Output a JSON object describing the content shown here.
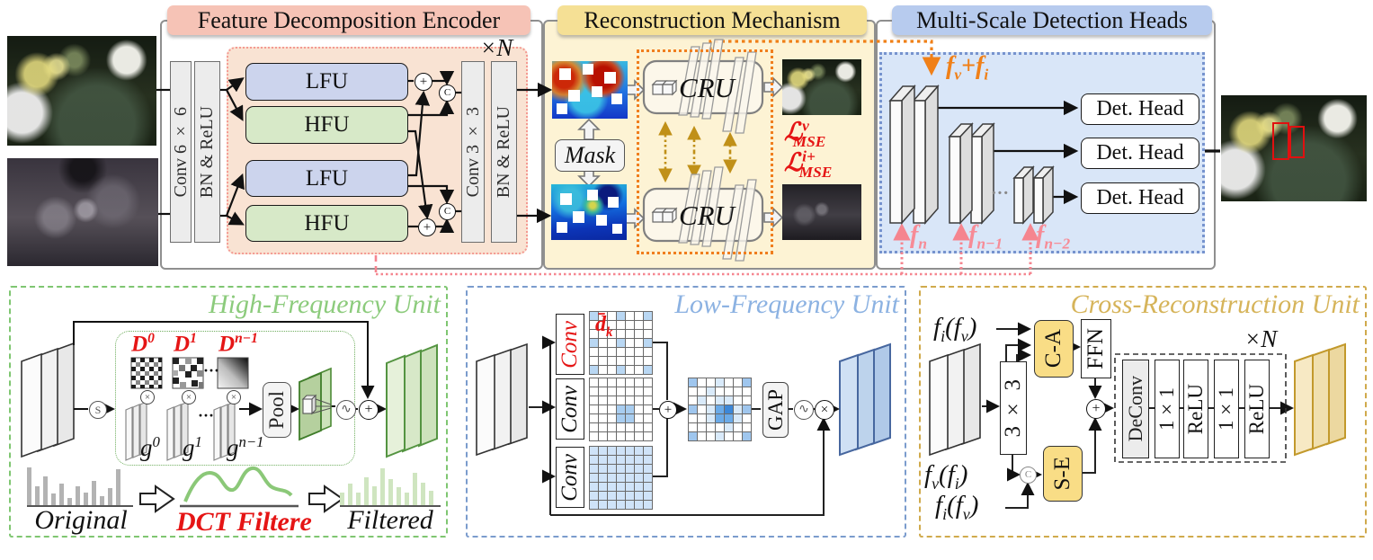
{
  "sections": {
    "encoder": {
      "title": "Feature Decomposition Encoder",
      "conv6": "Conv 6 × 6",
      "bn_relu": "BN & ReLU",
      "conv3": "Conv 3 × 3",
      "lfu": "LFU",
      "hfu": "HFU",
      "repeat": "×N",
      "icons": {
        "add": "+",
        "concat": "C"
      }
    },
    "reconstruction": {
      "title": "Reconstruction Mechanism",
      "mask": "Mask",
      "cru": "CRU",
      "loss_v": "ℒ<sup>v</sup><sub>MSE</sub>",
      "loss_i": "ℒ<sup>i+</sup><sub>MSE</sub>"
    },
    "detection": {
      "title": "Multi-Scale Detection Heads",
      "fused": "f<sub>v</sub>+f<sub>i</sub>",
      "det_head": "Det. Head",
      "dots": "···",
      "f_n": "f<sub>n</sub>",
      "f_n1": "f<sub>n−1</sub>",
      "f_n2": "f<sub>n−2</sub>"
    }
  },
  "units": {
    "hfu": {
      "title": "High-Frequency Unit",
      "d0": "D<sup>0</sup>",
      "d1": "D<sup>1</sup>",
      "dn": "D<sup>n−1</sup>",
      "g0": "g<sup>0</sup>",
      "g1": "g<sup>1</sup>",
      "gn": "g<sup>n−1</sup>",
      "pool": "Pool",
      "dots": "···",
      "icons": {
        "split": "S",
        "multiply": "×",
        "sigmoid": "∿",
        "add": "+"
      },
      "histogram_original": {
        "label": "Original",
        "color": "#b3b3b3",
        "values": [
          0.92,
          0.45,
          0.7,
          0.28,
          0.52,
          0.18,
          0.46,
          0.3,
          0.58,
          0.22,
          0.42,
          0.88
        ]
      },
      "dct_label": "DCT Filtere",
      "histogram_filtered": {
        "label": "Filtered",
        "color": "#cfe5c0",
        "values": [
          0.3,
          0.52,
          0.3,
          0.68,
          0.46,
          0.9,
          0.62,
          0.44,
          0.3,
          0.78,
          0.54,
          0.34
        ]
      }
    },
    "lfu": {
      "title": "Low-Frequency Unit",
      "conv_dilated": "Conv",
      "conv": "Conv",
      "dk": "d̄<sub>k</sub>",
      "gap": "GAP",
      "icons": {
        "add": "+",
        "sigmoid": "∿",
        "multiply": "×"
      },
      "grids": {
        "dilated": {
          "rows": [
            "X..X..X",
            ".......",
            ".......",
            "X..X..X",
            ".......",
            ".......",
            "X..X..X"
          ],
          "palette": {
            "X": "#b9d7f3",
            ".": "#ffffff"
          }
        },
        "center": {
          "rows": [
            ".......",
            ".......",
            ".......",
            "...XX..",
            "...XX..",
            ".......",
            "......."
          ],
          "palette": {
            "X": "#a8cdf0",
            ".": "#ffffff"
          }
        },
        "full": {
          "rows": [
            "XXXXXXX",
            "XXXXXXX",
            "XXXXXXX",
            "XXXXXXX",
            "XXXXXXX",
            "XXXXXXX",
            "XXXXXXX"
          ],
          "palette": {
            "X": "#cfe3f8",
            ".": "#ffffff"
          }
        },
        "combined": {
          "rows": [
            "X..o..X",
            "..o....",
            ".o.oo..",
            "X.oCDoX",
            "..oCCo.",
            "....o..",
            "X..o..X"
          ],
          "palette": {
            "X": "#9fc6ee",
            "o": "#d9eafa",
            "C": "#6aaae8",
            "D": "#3c87d8",
            ".": "#ffffff"
          }
        }
      }
    },
    "cru": {
      "title": "Cross-Reconstruction Unit",
      "in_top": "f<sub>i</sub>(f<sub>v</sub>)",
      "in_stack": "f<sub>v</sub>(f<sub>i</sub>)",
      "in_bottom": "f<sub>i</sub>(f<sub>v</sub>)",
      "k33": "3 × 3",
      "ca": "C-A",
      "se": "S-E",
      "ffn": "FFN",
      "deconv": "DeConv",
      "k11": "1×1",
      "relu": "ReLU",
      "repeat": "×N",
      "icons": {
        "add": "+",
        "concat": "C"
      }
    }
  },
  "colors": {
    "header_pink": "#f6c3b6",
    "header_yellow": "#f5e095",
    "header_blue": "#b7cbee",
    "encoder_inner": "#f9e3d3",
    "encoder_dotted": "#f49a92",
    "recon_bg": "#fdf3d4",
    "det_bg": "#d9e6f8",
    "lfu_fill": "#ccd4ed",
    "hfu_fill": "#d7e9c8",
    "accent_orange": "#f08018",
    "accent_gold": "#c09018",
    "accent_pink": "#f5858f",
    "accent_red": "#e51515",
    "hfu_green": "#8ccb7c",
    "lfu_blue": "#8cb2e2",
    "cru_gold": "#d6b45a"
  }
}
